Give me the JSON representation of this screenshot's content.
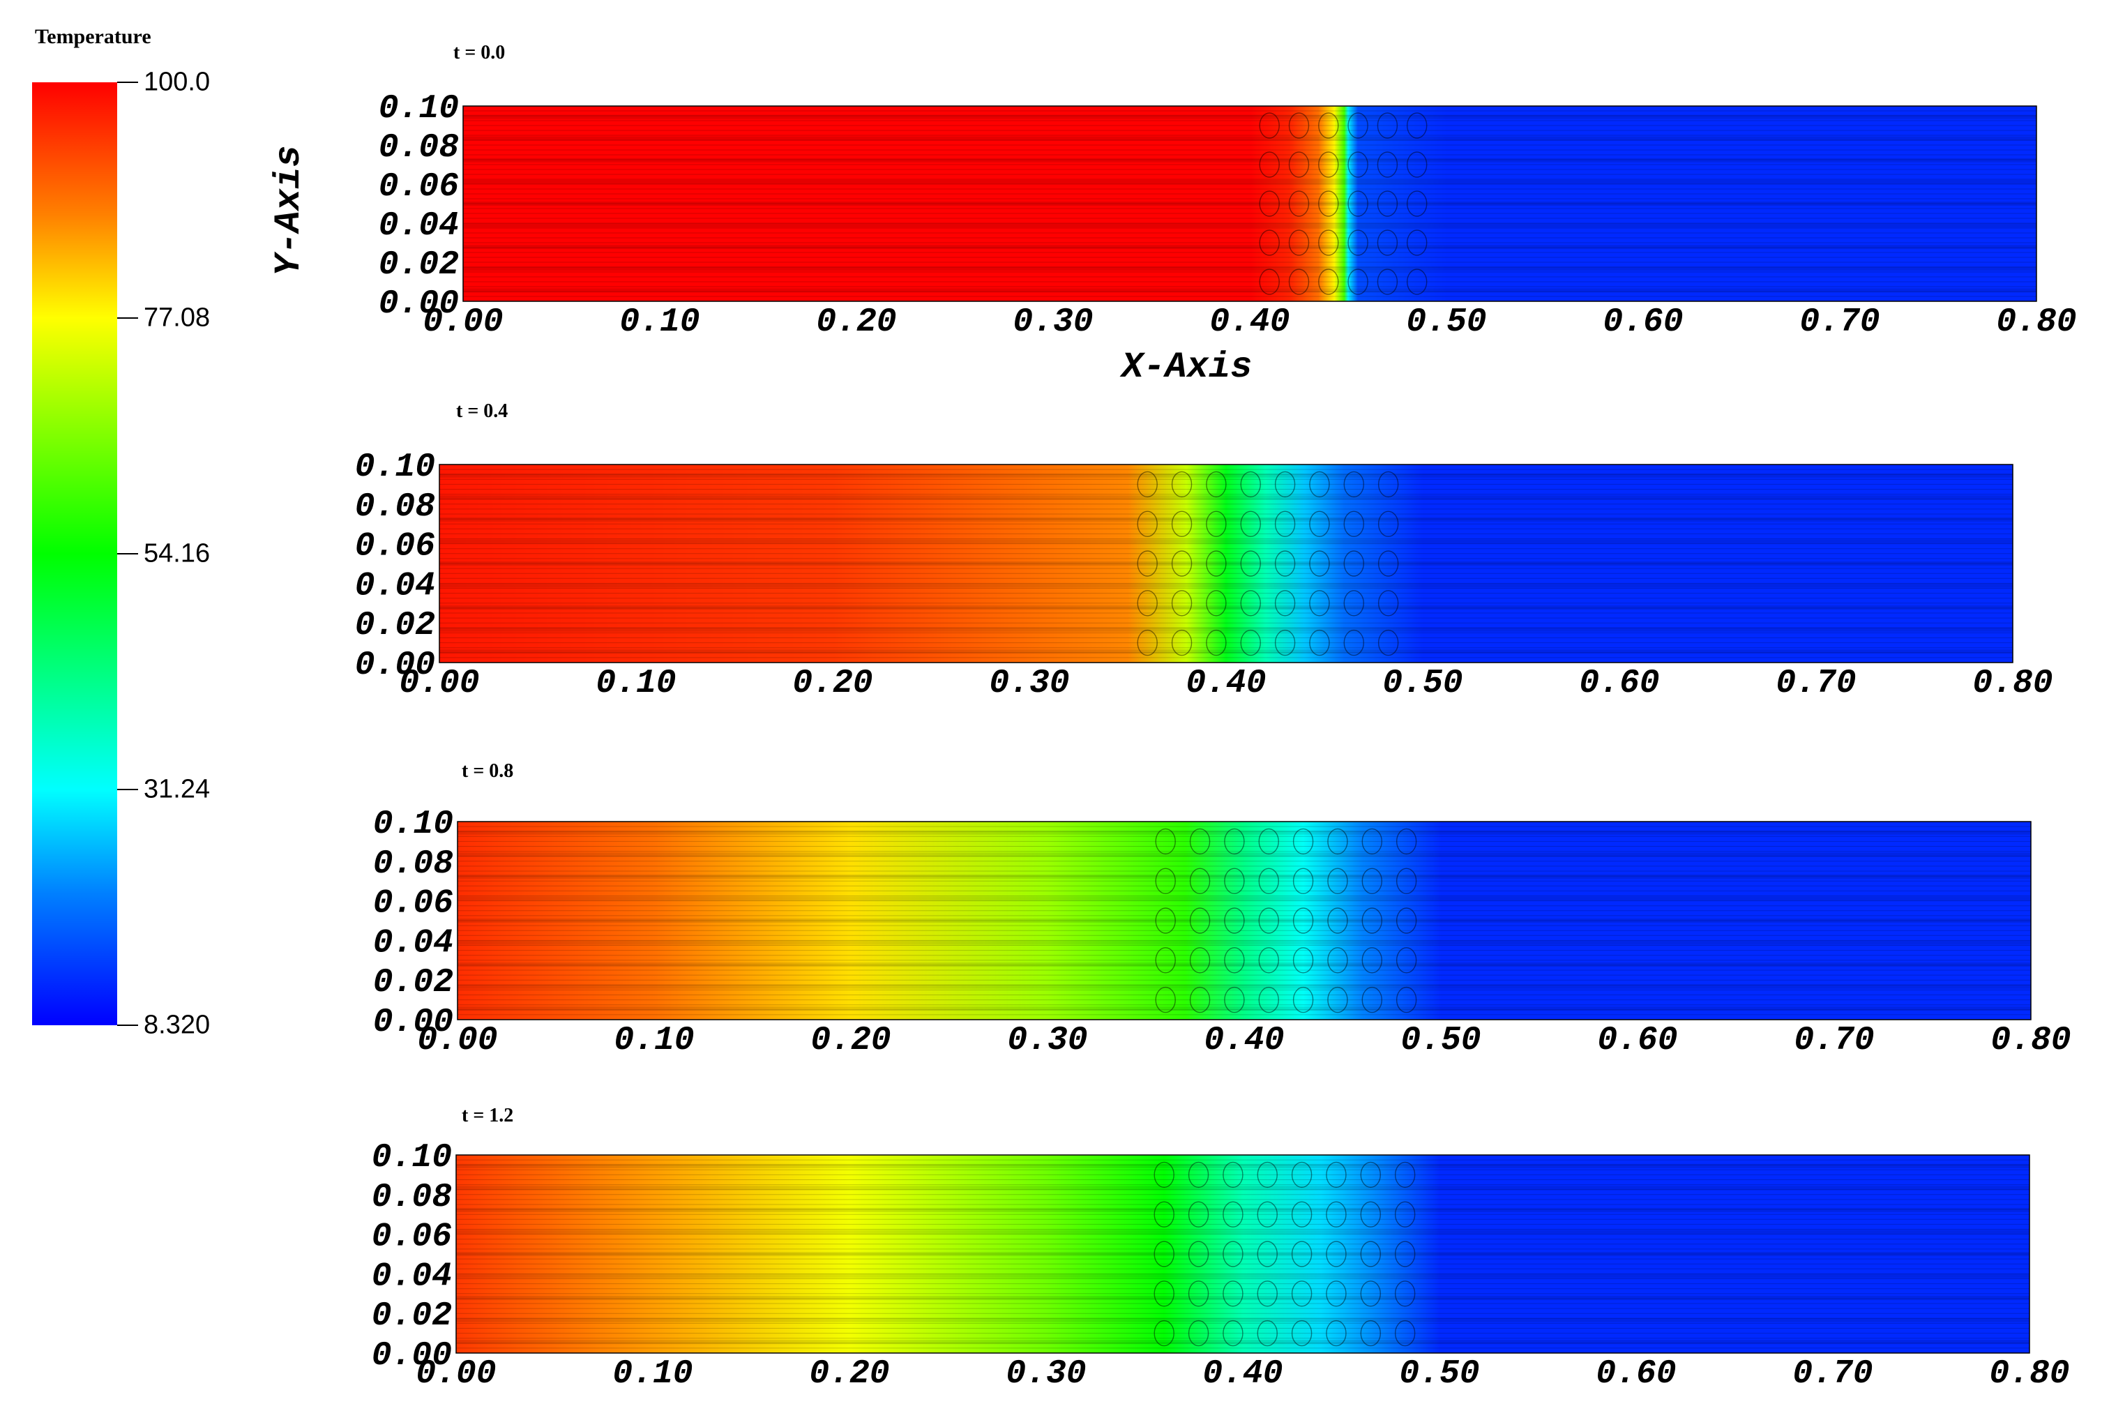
{
  "colorbar": {
    "title": "Temperature",
    "labels": [
      "100.0",
      "77.08",
      "54.16",
      "31.24",
      "8.320"
    ],
    "min": 8.32,
    "max": 100.0,
    "stops": [
      {
        "value": 100.0,
        "color": "#ff0000"
      },
      {
        "value": 77.08,
        "color": "#ffff00"
      },
      {
        "value": 54.16,
        "color": "#00ff00"
      },
      {
        "value": 31.24,
        "color": "#00ffff"
      },
      {
        "value": 8.32,
        "color": "#0000ff"
      }
    ]
  },
  "chart_data": [
    {
      "type": "heatmap",
      "title": "t = 0.0",
      "xlabel": "X-Axis",
      "ylabel": "Y-Axis",
      "xlim": [
        0.0,
        0.8
      ],
      "ylim": [
        0.0,
        0.1
      ],
      "x_ticks": [
        "0.00",
        "0.10",
        "0.20",
        "0.30",
        "0.40",
        "0.50",
        "0.60",
        "0.70",
        "0.80"
      ],
      "y_ticks": [
        "0.00",
        "0.02",
        "0.04",
        "0.06",
        "0.08",
        "0.10"
      ],
      "profile": [
        {
          "x": 0.0,
          "t": 100.0
        },
        {
          "x": 0.4,
          "t": 100.0
        },
        {
          "x": 0.42,
          "t": 97.0
        },
        {
          "x": 0.435,
          "t": 90.0
        },
        {
          "x": 0.443,
          "t": 78.0
        },
        {
          "x": 0.448,
          "t": 60.0
        },
        {
          "x": 0.45,
          "t": 30.0
        },
        {
          "x": 0.455,
          "t": 15.0
        },
        {
          "x": 0.5,
          "t": 12.0
        },
        {
          "x": 0.8,
          "t": 12.0
        }
      ]
    },
    {
      "type": "heatmap",
      "title": "t = 0.4",
      "xlabel": "",
      "ylabel": "",
      "xlim": [
        0.0,
        0.8
      ],
      "ylim": [
        0.0,
        0.1
      ],
      "x_ticks": [
        "0.00",
        "0.10",
        "0.20",
        "0.30",
        "0.40",
        "0.50",
        "0.60",
        "0.70",
        "0.80"
      ],
      "y_ticks": [
        "0.00",
        "0.02",
        "0.04",
        "0.06",
        "0.08",
        "0.10"
      ],
      "profile": [
        {
          "x": 0.0,
          "t": 98.0
        },
        {
          "x": 0.2,
          "t": 95.0
        },
        {
          "x": 0.35,
          "t": 88.0
        },
        {
          "x": 0.38,
          "t": 72.0
        },
        {
          "x": 0.4,
          "t": 52.0
        },
        {
          "x": 0.42,
          "t": 38.0
        },
        {
          "x": 0.44,
          "t": 26.0
        },
        {
          "x": 0.46,
          "t": 18.0
        },
        {
          "x": 0.5,
          "t": 12.0
        },
        {
          "x": 0.8,
          "t": 12.0
        }
      ]
    },
    {
      "type": "heatmap",
      "title": "t = 0.8",
      "xlabel": "",
      "ylabel": "",
      "xlim": [
        0.0,
        0.8
      ],
      "ylim": [
        0.0,
        0.1
      ],
      "x_ticks": [
        "0.00",
        "0.10",
        "0.20",
        "0.30",
        "0.40",
        "0.50",
        "0.60",
        "0.70",
        "0.80"
      ],
      "y_ticks": [
        "0.00",
        "0.02",
        "0.04",
        "0.06",
        "0.08",
        "0.10"
      ],
      "profile": [
        {
          "x": 0.0,
          "t": 96.0
        },
        {
          "x": 0.1,
          "t": 90.0
        },
        {
          "x": 0.2,
          "t": 80.0
        },
        {
          "x": 0.3,
          "t": 68.0
        },
        {
          "x": 0.37,
          "t": 58.0
        },
        {
          "x": 0.4,
          "t": 42.0
        },
        {
          "x": 0.43,
          "t": 32.0
        },
        {
          "x": 0.46,
          "t": 20.0
        },
        {
          "x": 0.5,
          "t": 12.0
        },
        {
          "x": 0.8,
          "t": 12.0
        }
      ]
    },
    {
      "type": "heatmap",
      "title": "t = 1.2",
      "xlabel": "",
      "ylabel": "",
      "xlim": [
        0.0,
        0.8
      ],
      "ylim": [
        0.0,
        0.1
      ],
      "x_ticks": [
        "0.00",
        "0.10",
        "0.20",
        "0.30",
        "0.40",
        "0.50",
        "0.60",
        "0.70",
        "0.80"
      ],
      "y_ticks": [
        "0.00",
        "0.02",
        "0.04",
        "0.06",
        "0.08",
        "0.10"
      ],
      "profile": [
        {
          "x": 0.0,
          "t": 95.0
        },
        {
          "x": 0.1,
          "t": 86.0
        },
        {
          "x": 0.2,
          "t": 76.0
        },
        {
          "x": 0.3,
          "t": 64.0
        },
        {
          "x": 0.36,
          "t": 54.0
        },
        {
          "x": 0.4,
          "t": 38.0
        },
        {
          "x": 0.44,
          "t": 28.0
        },
        {
          "x": 0.47,
          "t": 20.0
        },
        {
          "x": 0.5,
          "t": 12.0
        },
        {
          "x": 0.8,
          "t": 12.0
        }
      ]
    }
  ]
}
